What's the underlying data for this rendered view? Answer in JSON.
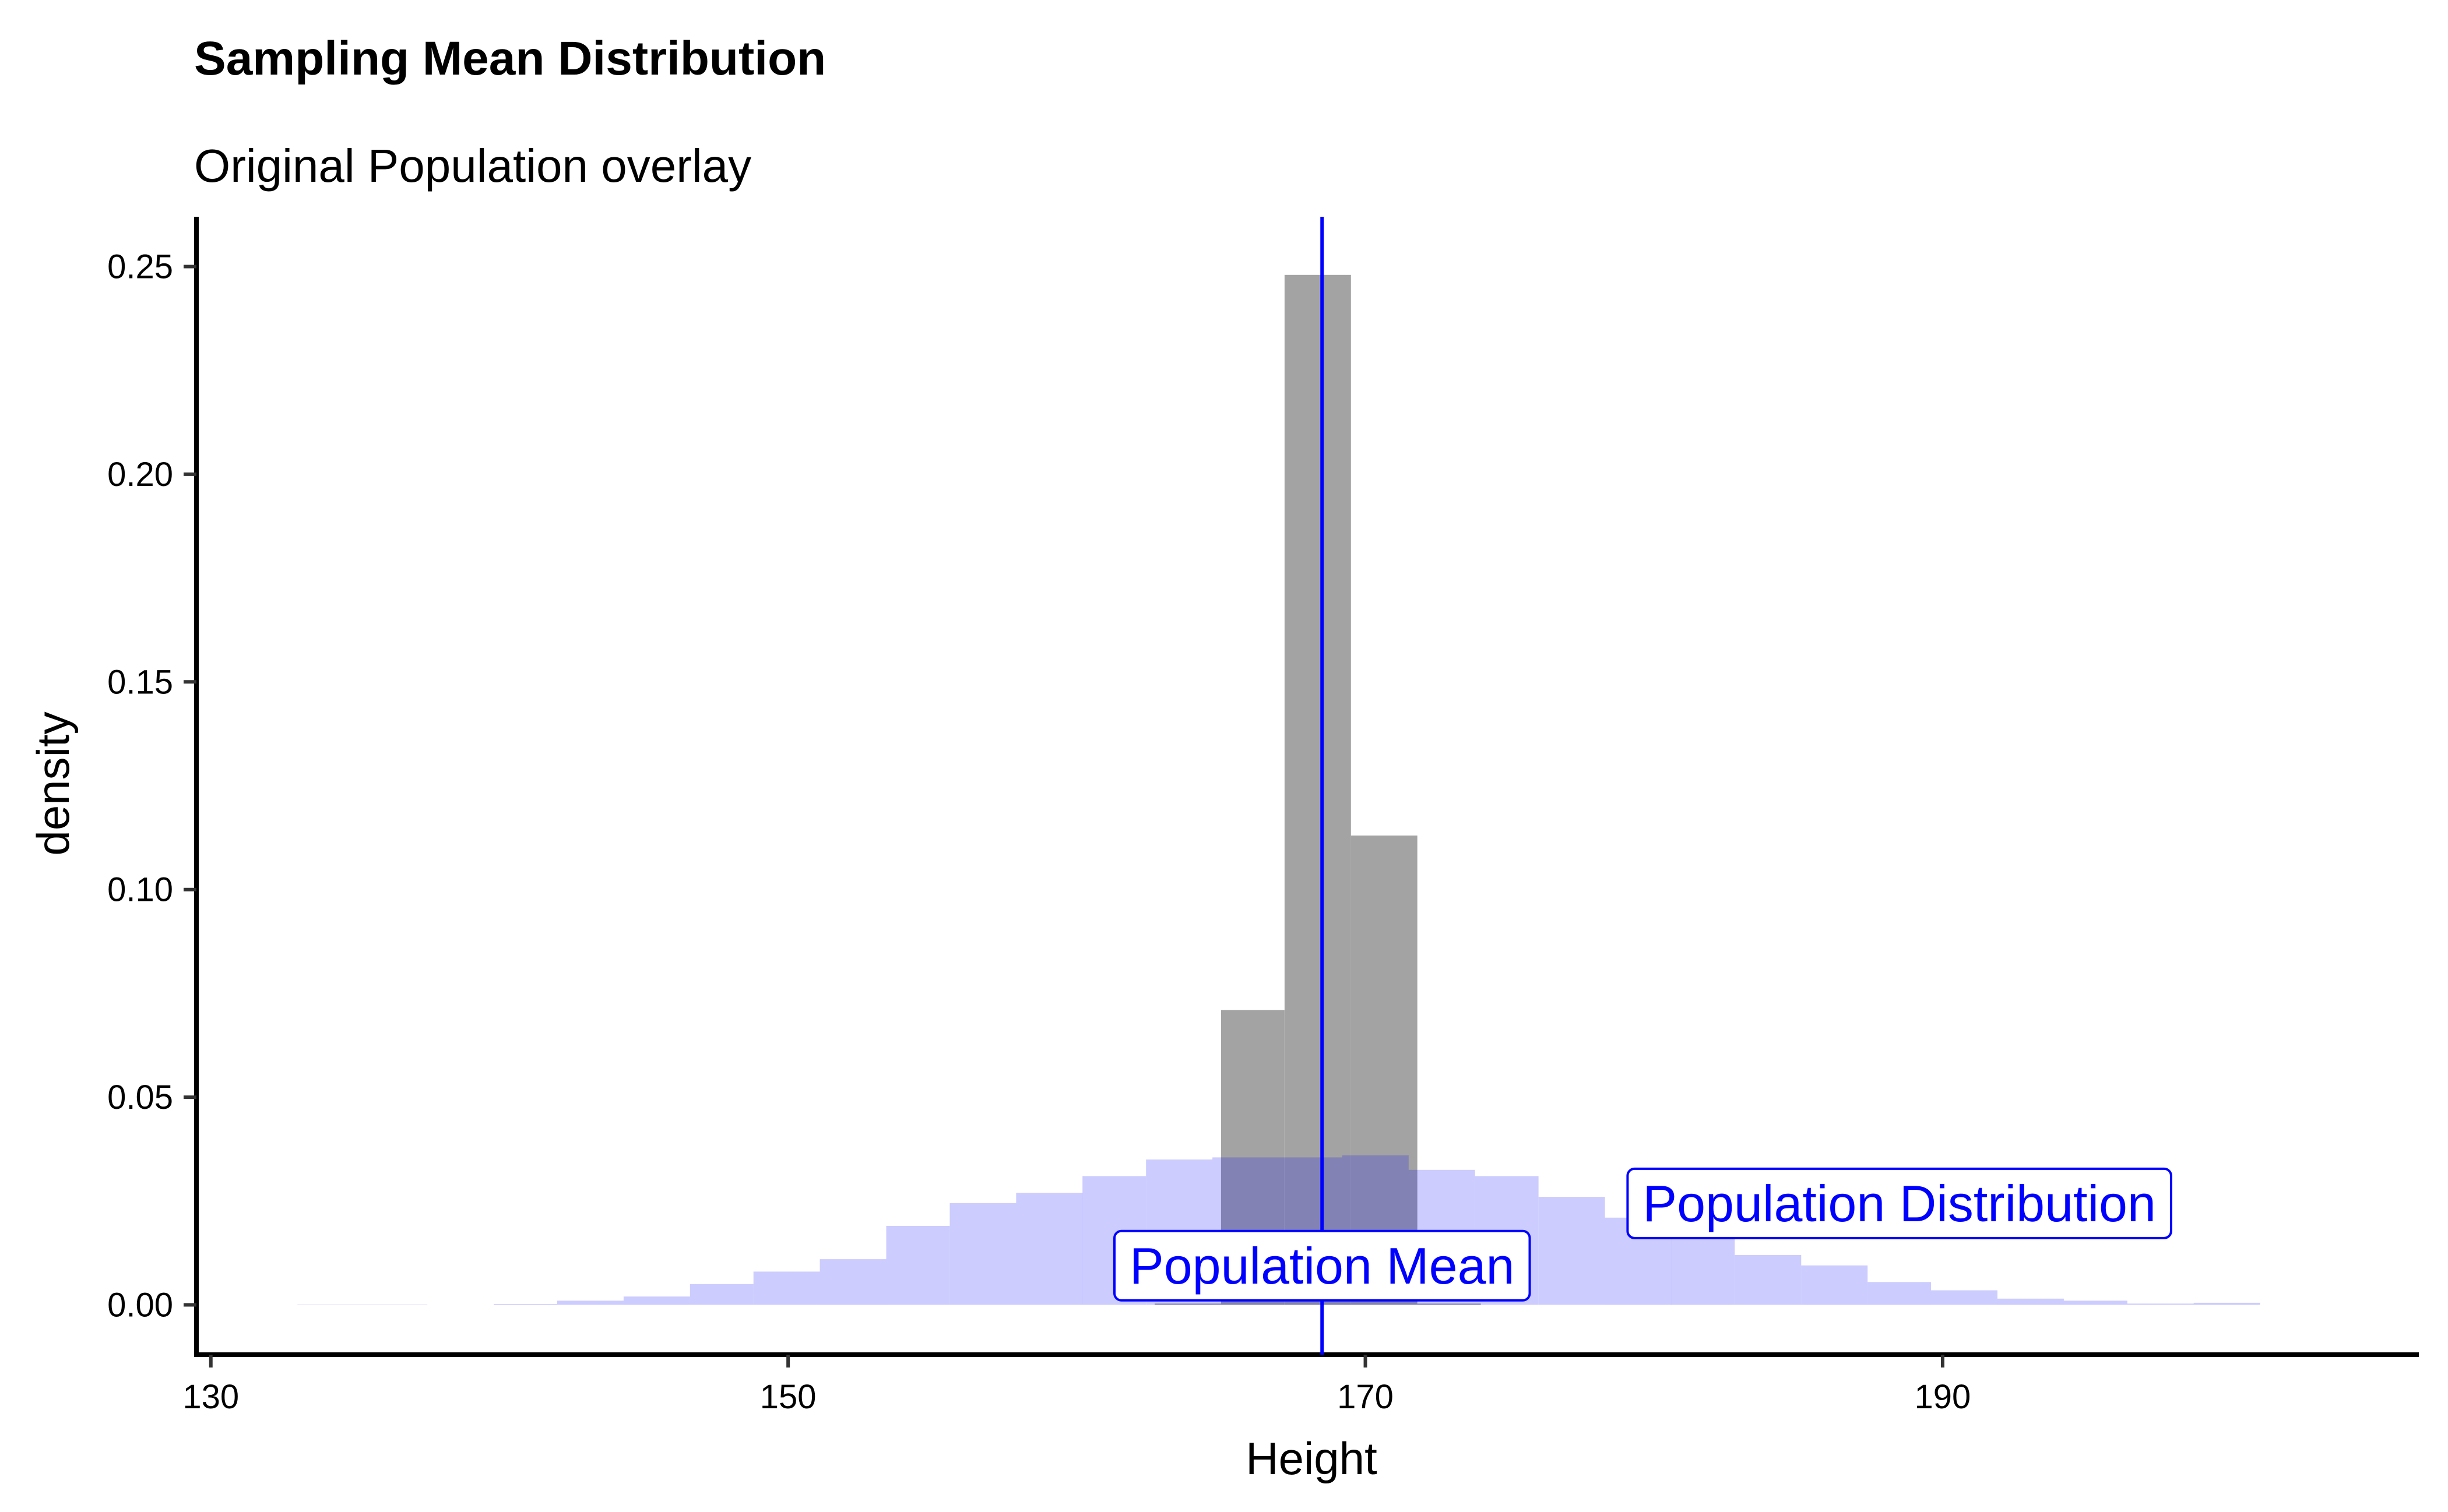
{
  "chart_data": {
    "type": "bar",
    "title": "Sampling Mean Distribution",
    "subtitle": "Original Population overlay",
    "xlabel": "Height",
    "ylabel": "density",
    "xlim": [
      129.5,
      206.5
    ],
    "ylim": [
      -0.012,
      0.262
    ],
    "x_ticks": [
      130,
      150,
      170,
      190
    ],
    "x_tick_labels": [
      "130",
      "150",
      "170",
      "190"
    ],
    "y_ticks": [
      0,
      0.05,
      0.1,
      0.15,
      0.2,
      0.25
    ],
    "y_tick_labels": [
      "0.00",
      "0.05",
      "0.10",
      "0.15",
      "0.20",
      "0.25"
    ],
    "grid": false,
    "legend": "none",
    "series": [
      {
        "kind": "histogram",
        "color": "#808080",
        "opacity": 0.72,
        "bins": [
          {
            "x0": 162.7,
            "x1": 165.0,
            "y": 0.0003
          },
          {
            "x0": 165.0,
            "x1": 167.2,
            "y": 0.071
          },
          {
            "x0": 167.2,
            "x1": 169.5,
            "y": 0.248
          },
          {
            "x0": 169.5,
            "x1": 171.8,
            "y": 0.113
          },
          {
            "x0": 171.8,
            "x1": 174.0,
            "y": 0.0003
          }
        ]
      },
      {
        "kind": "histogram",
        "color": "#0000ff",
        "opacity": 0.2,
        "bins": [
          {
            "x0": 133.0,
            "x1": 135.2,
            "y": 0.0001
          },
          {
            "x0": 135.2,
            "x1": 137.5,
            "y": 0.0001
          },
          {
            "x0": 139.8,
            "x1": 142.0,
            "y": 0.0002
          },
          {
            "x0": 142.0,
            "x1": 144.3,
            "y": 0.001
          },
          {
            "x0": 144.3,
            "x1": 146.6,
            "y": 0.002
          },
          {
            "x0": 146.6,
            "x1": 148.8,
            "y": 0.005
          },
          {
            "x0": 148.8,
            "x1": 151.1,
            "y": 0.008
          },
          {
            "x0": 151.1,
            "x1": 153.4,
            "y": 0.011
          },
          {
            "x0": 153.4,
            "x1": 155.6,
            "y": 0.019
          },
          {
            "x0": 155.6,
            "x1": 157.9,
            "y": 0.0245
          },
          {
            "x0": 157.9,
            "x1": 160.2,
            "y": 0.027
          },
          {
            "x0": 160.2,
            "x1": 162.4,
            "y": 0.031
          },
          {
            "x0": 162.4,
            "x1": 164.7,
            "y": 0.035
          },
          {
            "x0": 164.7,
            "x1": 167.0,
            "y": 0.0355
          },
          {
            "x0": 167.0,
            "x1": 169.2,
            "y": 0.0355
          },
          {
            "x0": 169.2,
            "x1": 171.5,
            "y": 0.036
          },
          {
            "x0": 171.5,
            "x1": 173.8,
            "y": 0.0325
          },
          {
            "x0": 173.8,
            "x1": 176.0,
            "y": 0.031
          },
          {
            "x0": 176.0,
            "x1": 178.3,
            "y": 0.026
          },
          {
            "x0": 178.3,
            "x1": 180.6,
            "y": 0.021
          },
          {
            "x0": 180.6,
            "x1": 182.8,
            "y": 0.017
          },
          {
            "x0": 182.8,
            "x1": 185.1,
            "y": 0.012
          },
          {
            "x0": 185.1,
            "x1": 187.4,
            "y": 0.0095
          },
          {
            "x0": 187.4,
            "x1": 189.6,
            "y": 0.0055
          },
          {
            "x0": 189.6,
            "x1": 191.9,
            "y": 0.0035
          },
          {
            "x0": 191.9,
            "x1": 194.2,
            "y": 0.0015
          },
          {
            "x0": 194.2,
            "x1": 196.4,
            "y": 0.001
          },
          {
            "x0": 196.4,
            "x1": 198.7,
            "y": 0.0003
          },
          {
            "x0": 198.7,
            "x1": 201.0,
            "y": 0.0005
          }
        ]
      }
    ],
    "vline": {
      "x": 168.5,
      "color": "#0000ff"
    },
    "annotations": [
      {
        "label": "Population Mean",
        "x": 168.5,
        "y": 0.0095,
        "color": "#0000ff"
      },
      {
        "label": "Population Distribution",
        "x": 188.5,
        "y": 0.0245,
        "color": "#0000ff"
      }
    ]
  }
}
